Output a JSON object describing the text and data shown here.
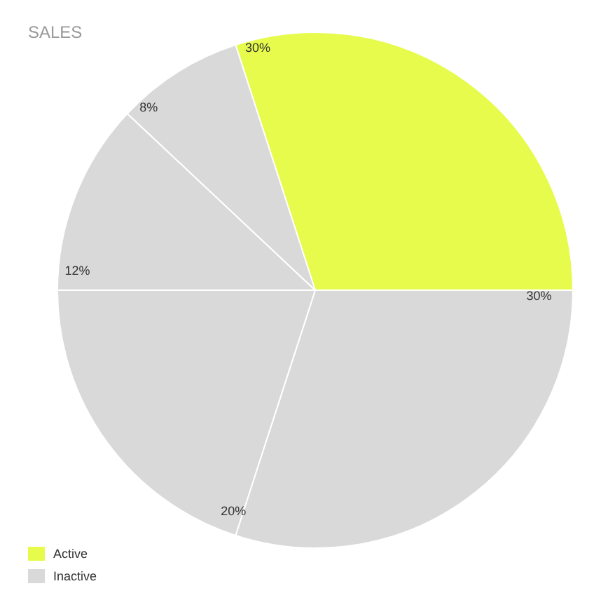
{
  "chart_data": {
    "type": "pie",
    "title": "SALES",
    "categories": [
      "Active",
      "Inactive",
      null,
      null,
      null
    ],
    "values": [
      30,
      30,
      20,
      12,
      8
    ],
    "value_labels": [
      "30%",
      "30%",
      "20%",
      "12%",
      "8%"
    ],
    "colors": [
      "#e6fb4b",
      "#d9d9d9",
      "#d9d9d9",
      "#d9d9d9",
      "#d9d9d9"
    ],
    "legend": "bottom left"
  }
}
